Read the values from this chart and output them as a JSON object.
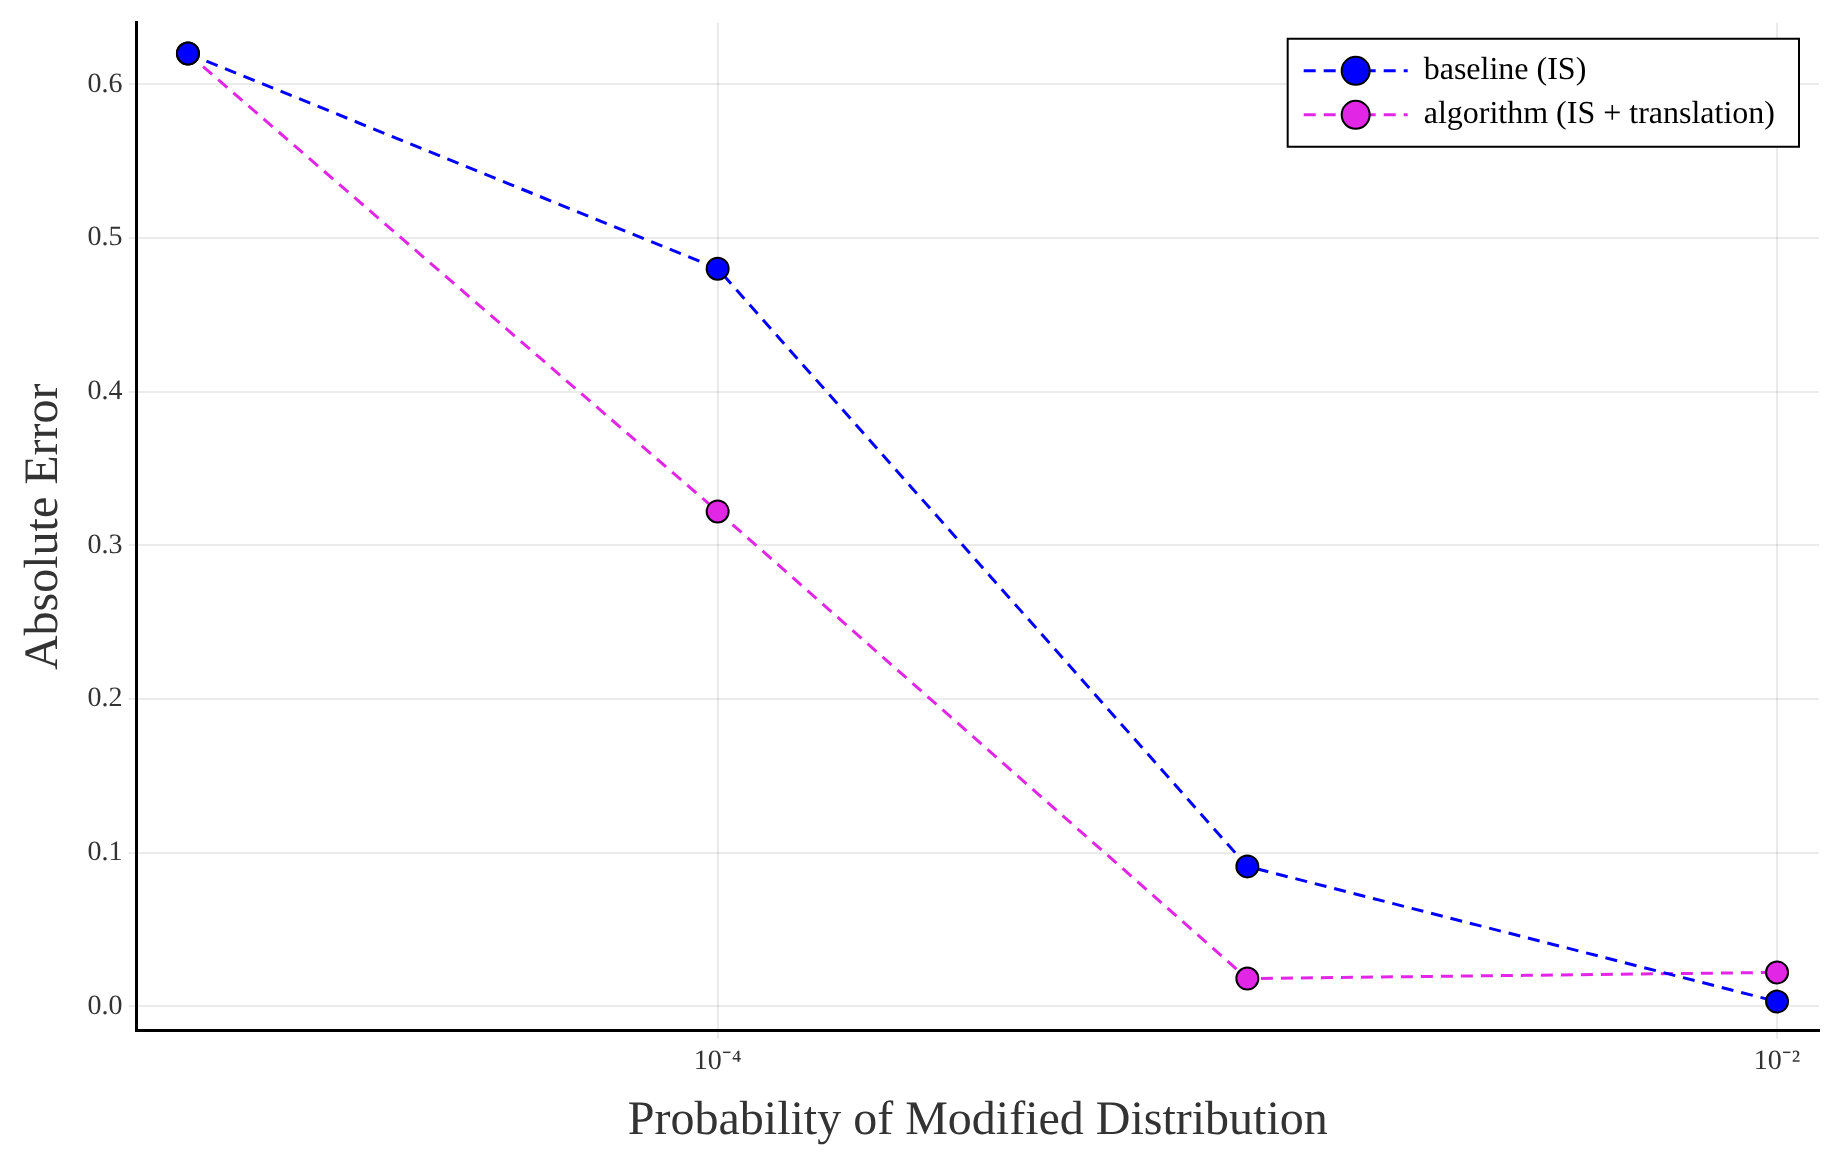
{
  "chart_data": {
    "type": "line",
    "xlabel": "Probability of Modified Distribution",
    "ylabel": "Absolute Error",
    "x": [
      1e-05,
      0.0001,
      0.001,
      0.01
    ],
    "series": [
      {
        "name": "baseline (IS)",
        "color": "#0000ff",
        "values": [
          0.62,
          0.48,
          0.091,
          0.003
        ]
      },
      {
        "name": "algorithm (IS + translation)",
        "color": "#e226e6",
        "values": [
          0.62,
          0.322,
          0.018,
          0.022
        ]
      }
    ],
    "log": "x",
    "xlim": [
      8e-06,
      0.012
    ],
    "xticks": [
      {
        "value": 0.0001,
        "label": "10⁻⁴"
      },
      {
        "value": 0.01,
        "label": "10⁻²"
      }
    ],
    "ylim": [
      -0.016,
      0.64
    ],
    "yticks": [
      {
        "value": 0,
        "label": "0.0"
      },
      0.1,
      0.2,
      0.3,
      0.4,
      0.5,
      0.6
    ],
    "grid": true,
    "legend": "top right",
    "marker": "circle",
    "line_style": "dashed"
  }
}
